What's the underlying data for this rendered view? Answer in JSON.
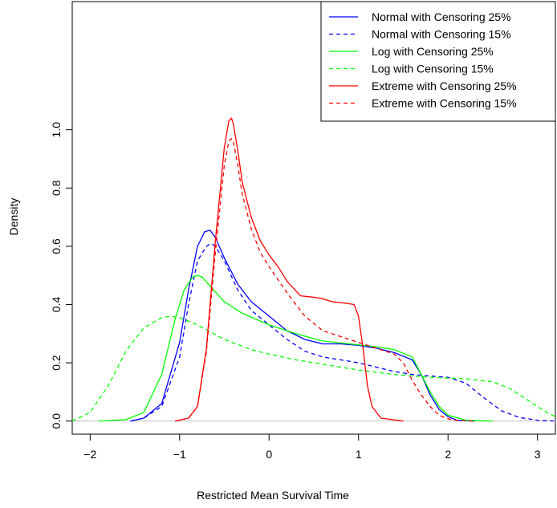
{
  "chart_data": {
    "type": "line",
    "title": "",
    "xlabel": "Restricted Mean Survival Time",
    "ylabel": "Density",
    "xlim": [
      -2.2,
      3.2
    ],
    "ylim": [
      -0.045,
      1.44
    ],
    "x_ticks": [
      -2,
      -1,
      0,
      1,
      2,
      3
    ],
    "x_tick_labels": [
      "−2",
      "−1",
      "0",
      "1",
      "2",
      "3"
    ],
    "y_ticks": [
      0.0,
      0.2,
      0.4,
      0.6,
      0.8,
      1.0
    ],
    "y_tick_labels": [
      "0.0",
      "0.2",
      "0.4",
      "0.6",
      "0.8",
      "1.0"
    ],
    "baseline": 0,
    "baseline_color": "#bebebe",
    "grid": false,
    "legend_position": "top-right",
    "series": [
      {
        "name": "Normal with Censoring 25%",
        "color": "#0000ff",
        "dash": "solid",
        "x": [
          -1.55,
          -1.4,
          -1.2,
          -1.0,
          -0.9,
          -0.8,
          -0.72,
          -0.66,
          -0.6,
          -0.5,
          -0.35,
          -0.2,
          0.0,
          0.2,
          0.4,
          0.6,
          0.8,
          1.0,
          1.2,
          1.4,
          1.6,
          1.7,
          1.8,
          1.9,
          2.0,
          2.1,
          2.3
        ],
        "y": [
          0.0,
          0.01,
          0.06,
          0.27,
          0.45,
          0.6,
          0.65,
          0.655,
          0.63,
          0.56,
          0.47,
          0.41,
          0.36,
          0.31,
          0.28,
          0.265,
          0.265,
          0.26,
          0.25,
          0.235,
          0.21,
          0.16,
          0.09,
          0.04,
          0.015,
          0.003,
          0.0
        ]
      },
      {
        "name": "Normal with Censoring 15%",
        "color": "#0000ff",
        "dash": "dashed",
        "x": [
          -1.55,
          -1.4,
          -1.2,
          -1.0,
          -0.9,
          -0.8,
          -0.7,
          -0.65,
          -0.6,
          -0.5,
          -0.35,
          -0.2,
          0.0,
          0.2,
          0.4,
          0.6,
          0.8,
          1.0,
          1.2,
          1.4,
          1.6,
          1.8,
          2.0,
          2.2,
          2.4,
          2.6,
          2.8,
          3.0,
          3.2
        ],
        "y": [
          0.0,
          0.01,
          0.05,
          0.22,
          0.4,
          0.55,
          0.6,
          0.61,
          0.6,
          0.55,
          0.45,
          0.38,
          0.33,
          0.28,
          0.24,
          0.22,
          0.21,
          0.2,
          0.185,
          0.17,
          0.16,
          0.155,
          0.15,
          0.13,
          0.08,
          0.035,
          0.012,
          0.003,
          0.0
        ]
      },
      {
        "name": "Log with Censoring 25%",
        "color": "#00ff00",
        "dash": "solid",
        "x": [
          -1.9,
          -1.6,
          -1.4,
          -1.2,
          -1.05,
          -0.95,
          -0.85,
          -0.8,
          -0.75,
          -0.65,
          -0.5,
          -0.3,
          0.0,
          0.3,
          0.6,
          0.9,
          1.2,
          1.4,
          1.6,
          1.7,
          1.8,
          1.9,
          2.0,
          2.2,
          2.5
        ],
        "y": [
          0.0,
          0.005,
          0.03,
          0.16,
          0.35,
          0.45,
          0.495,
          0.5,
          0.495,
          0.46,
          0.41,
          0.37,
          0.33,
          0.3,
          0.275,
          0.265,
          0.255,
          0.245,
          0.22,
          0.16,
          0.1,
          0.05,
          0.02,
          0.003,
          0.0
        ]
      },
      {
        "name": "Log with Censoring 15%",
        "color": "#00ff00",
        "dash": "dashed",
        "x": [
          -2.2,
          -2.0,
          -1.8,
          -1.6,
          -1.4,
          -1.2,
          -1.1,
          -1.0,
          -0.8,
          -0.5,
          -0.2,
          0.0,
          0.3,
          0.6,
          1.0,
          1.4,
          1.8,
          2.2,
          2.5,
          2.7,
          2.9,
          3.1,
          3.2
        ],
        "y": [
          0.0,
          0.03,
          0.12,
          0.24,
          0.32,
          0.355,
          0.36,
          0.355,
          0.33,
          0.28,
          0.245,
          0.23,
          0.21,
          0.195,
          0.175,
          0.16,
          0.15,
          0.145,
          0.135,
          0.11,
          0.07,
          0.03,
          0.015
        ]
      },
      {
        "name": "Extreme with Censoring 25%",
        "color": "#ff0000",
        "dash": "solid",
        "x": [
          -1.05,
          -0.9,
          -0.8,
          -0.7,
          -0.6,
          -0.5,
          -0.45,
          -0.42,
          -0.4,
          -0.35,
          -0.3,
          -0.2,
          -0.1,
          0.0,
          0.1,
          0.2,
          0.35,
          0.5,
          0.6,
          0.7,
          0.85,
          0.95,
          1.0,
          1.05,
          1.1,
          1.15,
          1.25,
          1.5
        ],
        "y": [
          0.0,
          0.01,
          0.05,
          0.25,
          0.62,
          0.94,
          1.03,
          1.04,
          1.02,
          0.93,
          0.82,
          0.7,
          0.62,
          0.57,
          0.53,
          0.48,
          0.43,
          0.425,
          0.42,
          0.41,
          0.405,
          0.4,
          0.36,
          0.25,
          0.12,
          0.05,
          0.01,
          0.0
        ]
      },
      {
        "name": "Extreme with Censoring 15%",
        "color": "#ff0000",
        "dash": "dashed",
        "x": [
          -1.05,
          -0.9,
          -0.8,
          -0.7,
          -0.6,
          -0.5,
          -0.45,
          -0.42,
          -0.4,
          -0.35,
          -0.3,
          -0.2,
          -0.1,
          0.0,
          0.2,
          0.4,
          0.6,
          0.8,
          1.0,
          1.2,
          1.4,
          1.5,
          1.6,
          1.7,
          1.8,
          1.9,
          2.0,
          2.1,
          2.3
        ],
        "y": [
          0.0,
          0.01,
          0.05,
          0.24,
          0.58,
          0.88,
          0.96,
          0.97,
          0.96,
          0.88,
          0.78,
          0.66,
          0.58,
          0.53,
          0.44,
          0.36,
          0.31,
          0.29,
          0.27,
          0.25,
          0.23,
          0.2,
          0.14,
          0.09,
          0.05,
          0.02,
          0.008,
          0.002,
          0.0
        ]
      }
    ]
  }
}
